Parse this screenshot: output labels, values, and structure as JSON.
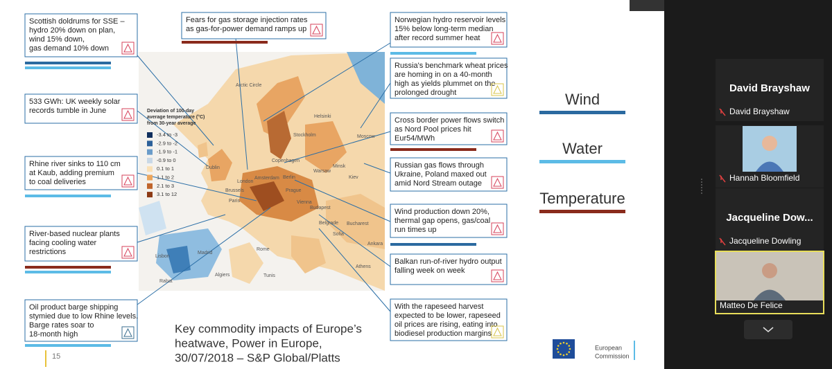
{
  "slide": {
    "callouts": [
      {
        "lines": [
          "Scottish doldrums for SSE –",
          "hydro 20% down on plan,",
          "wind 15% down,",
          "gas demand 10% down"
        ]
      },
      {
        "lines": [
          "533 GWh: UK weekly solar",
          "records tumble in June"
        ]
      },
      {
        "lines": [
          "Rhine river sinks to 110 cm",
          "at Kaub, adding premium",
          "to coal deliveries"
        ]
      },
      {
        "lines": [
          "River-based nuclear plants",
          "facing cooling water",
          "restrictions"
        ]
      },
      {
        "lines": [
          "Oil product barge shipping",
          "stymied due to low Rhine levels.",
          "Barge rates soar to",
          "18-month high"
        ]
      },
      {
        "lines": [
          "Fears for gas storage injection rates",
          "as gas-for-power demand ramps up"
        ]
      },
      {
        "lines": [
          "Norwegian hydro reservoir levels",
          "15% below long-term median",
          "after record summer heat"
        ]
      },
      {
        "lines": [
          "Russia's benchmark wheat prices",
          "are homing in on a 40-month",
          "high as yields plummet on the",
          "prolonged drought"
        ]
      },
      {
        "lines": [
          "Cross border power flows switch",
          "as Nord Pool prices hit",
          "Eur54/MWh"
        ]
      },
      {
        "lines": [
          "Russian gas flows through",
          "Ukraine, Poland maxed out",
          "amid Nord Stream outage"
        ]
      },
      {
        "lines": [
          "Wind production down 20%,",
          "thermal gap opens, gas/coal",
          "run times up"
        ]
      },
      {
        "lines": [
          "Balkan run-of-river hydro output",
          "falling week on week"
        ]
      },
      {
        "lines": [
          "With the rapeseed harvest",
          "expected to be lower, rapeseed",
          "oil prices are rising, eating into",
          "biodiesel production margins"
        ]
      }
    ],
    "map": {
      "legend": {
        "title": [
          "Deviation of 100-day",
          "average temperature (°C)",
          "from 30-year average"
        ],
        "items": [
          "-3.4 to -3",
          "-2.9 to -2",
          "-1.9 to -1",
          "-0.9 to 0",
          "0.1 to 1",
          "1.1 to 2",
          "2.1 to 3",
          "3.1 to 12"
        ]
      },
      "places": [
        "Arctic Circle",
        "Helsinki",
        "Stockholm",
        "Moscow",
        "Copenhagen",
        "Minsk",
        "Dublin",
        "London",
        "Amsterdam",
        "Berlin",
        "Warsaw",
        "Kiev",
        "Brussels",
        "Paris",
        "Prague",
        "Vienna",
        "Budapest",
        "Belgrade",
        "Bucharest",
        "Sofia",
        "Ankara",
        "Madrid",
        "Lisbon",
        "Rome",
        "Athens",
        "Algiers",
        "Tunis",
        "Rabat"
      ]
    },
    "key": [
      "Wind",
      "Water",
      "Temperature"
    ],
    "caption": [
      "Key commodity impacts of Europe’s",
      "heatwave, Power in Europe,",
      "30/07/2018 – S&P Global/Platts"
    ],
    "page_number": "15",
    "logo": [
      "European",
      "Commission"
    ]
  },
  "participants": [
    {
      "tile_name": "David Brayshaw",
      "label": "David Brayshaw"
    },
    {
      "label": "Hannah Bloomfield"
    },
    {
      "tile_name": "Jacqueline  Dow...",
      "label": "Jacqueline Dowling"
    },
    {
      "label": "Matteo De Felice"
    }
  ]
}
